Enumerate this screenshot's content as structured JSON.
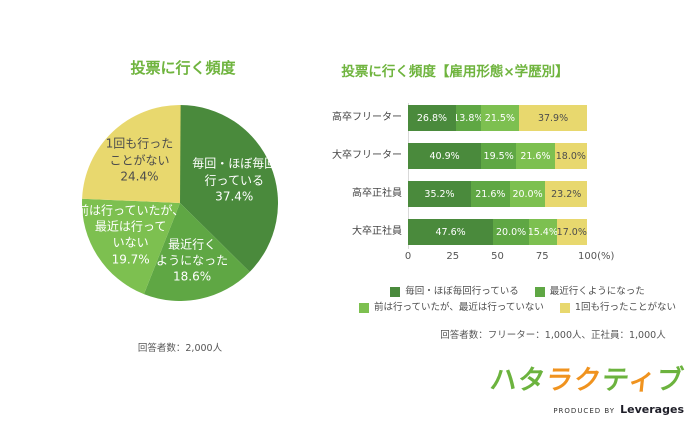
{
  "colors": {
    "title_green": "#6fb43e",
    "s1": "#4a8a3c",
    "s2": "#5fa744",
    "s3": "#7dc050",
    "s4": "#e8d86e",
    "dark_text": "#4d4d4d",
    "axis_text": "#555555",
    "logo_green": "#6cb33e",
    "logo_orange": "#f0931f"
  },
  "chart_data": [
    {
      "type": "pie",
      "title": "投票に行く頻度",
      "note": "回答者数：2,000人",
      "start_angle_deg": 0,
      "direction": "clockwise",
      "segments": [
        {
          "label": "毎回・ほぼ毎回行っている",
          "value": 37.4,
          "color_key": "s1",
          "text_color": "#ffffff",
          "label_lines": [
            "毎回・ほぼ毎回",
            "行っている",
            "37.4%"
          ]
        },
        {
          "label": "最近行くようになった",
          "value": 18.6,
          "color_key": "s2",
          "text_color": "#ffffff",
          "label_lines": [
            "最近行く",
            "ようになった",
            "18.6%"
          ]
        },
        {
          "label": "前は行っていたが、最近は行っていない",
          "value": 19.7,
          "color_key": "s3",
          "text_color": "#ffffff",
          "label_lines": [
            "前は行っていたが、",
            "最近は行って",
            "いない",
            "19.7%"
          ]
        },
        {
          "label": "1回も行ったことがない",
          "value": 24.4,
          "color_key": "s4",
          "text_color": "#4d4d4d",
          "label_lines": [
            "1回も行った",
            "ことがない",
            "24.4%"
          ]
        }
      ]
    },
    {
      "type": "bar",
      "orientation": "horizontal",
      "stacked": true,
      "title": "投票に行く頻度【雇用形態×学歴別】",
      "note": "回答者数：フリーター：1,000人、正社員：1,000人",
      "categories": [
        "高卒フリーター",
        "大卒フリーター",
        "高卒正社員",
        "大卒正社員"
      ],
      "series": [
        {
          "name": "毎回・ほぼ毎回行っている",
          "color_key": "s1",
          "value_text_color": "#ffffff",
          "values": [
            26.8,
            40.9,
            35.2,
            47.6
          ]
        },
        {
          "name": "最近行くようになった",
          "color_key": "s2",
          "value_text_color": "#ffffff",
          "values": [
            13.8,
            19.5,
            21.6,
            20.0
          ]
        },
        {
          "name": "前は行っていたが、最近は行っていない",
          "color_key": "s3",
          "value_text_color": "#ffffff",
          "values": [
            21.5,
            21.6,
            20.0,
            15.4
          ]
        },
        {
          "name": "1回も行ったことがない",
          "color_key": "s4",
          "value_text_color": "#4d4d4d",
          "values": [
            37.9,
            18.0,
            23.2,
            17.0
          ]
        }
      ],
      "xlim": [
        0,
        100
      ],
      "x_ticks": [
        {
          "value": 0,
          "text": "0"
        },
        {
          "value": 25,
          "text": "25"
        },
        {
          "value": 50,
          "text": "50"
        },
        {
          "value": 75,
          "text": "75"
        },
        {
          "value": 100,
          "text": "100(%)"
        }
      ],
      "legend_rows": [
        [
          0,
          1
        ],
        [
          2,
          3
        ]
      ],
      "grid": false
    }
  ],
  "logo": {
    "chars": [
      {
        "c": "ハ",
        "color": "green"
      },
      {
        "c": "タ",
        "color": "green"
      },
      {
        "c": "ラ",
        "color": "orange"
      },
      {
        "c": "ク",
        "color": "orange"
      },
      {
        "c": "テ",
        "color": "green"
      },
      {
        "c": "ィ",
        "color": "orange"
      },
      {
        "c": "ブ",
        "color": "green"
      }
    ],
    "produced_by": "PRODUCED BY",
    "company": "Leverages"
  }
}
